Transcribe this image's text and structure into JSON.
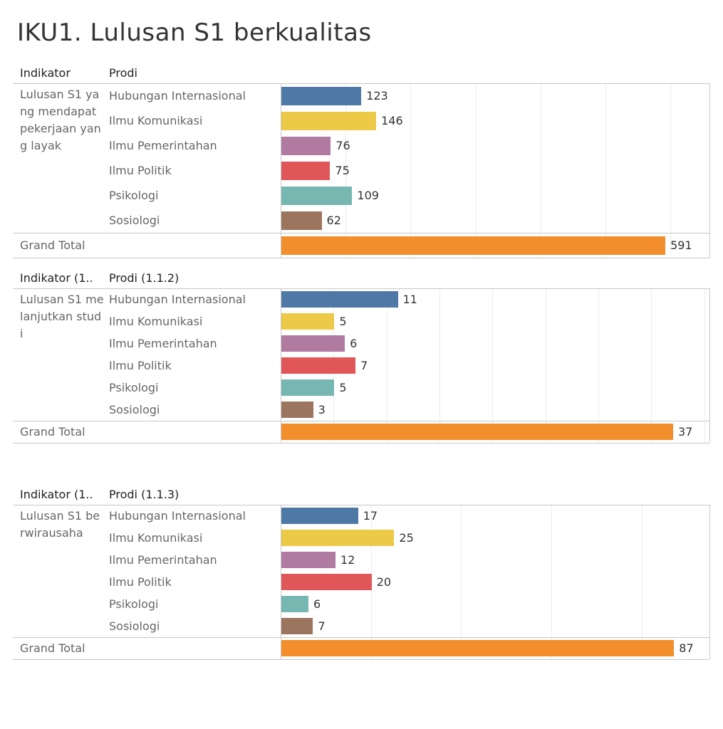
{
  "title": "IKU1. Lulusan S1 berkualitas",
  "grand_total_label": "Grand Total",
  "colors": {
    "Hubungan Internasional": "#4e79a7",
    "Ilmu Komunikasi": "#edc948",
    "Ilmu Pemerintahan": "#b07aa1",
    "Ilmu Politik": "#e15759",
    "Psikologi": "#76b7b2",
    "Sosiologi": "#9c755f",
    "grand_total": "#f28e2b"
  },
  "chart_data": [
    {
      "type": "bar",
      "orientation": "horizontal",
      "header_indikator": "Indikator",
      "header_prodi": "Prodi",
      "indikator": "Lulusan S1 yang mendapat pekerjaan yang layak",
      "categories": [
        "Hubungan Internasional",
        "Ilmu Komunikasi",
        "Ilmu Pemerintahan",
        "Ilmu Politik",
        "Psikologi",
        "Sosiologi"
      ],
      "values": [
        123,
        146,
        76,
        75,
        109,
        62
      ],
      "grand_total": 591,
      "xlim": [
        0,
        660
      ],
      "gridlines": [
        0,
        100,
        200,
        300,
        400,
        500,
        600
      ]
    },
    {
      "type": "bar",
      "orientation": "horizontal",
      "header_indikator": "Indikator (1..",
      "header_prodi": "Prodi (1.1.2)",
      "indikator": "Lulusan S1 melanjutkan studi",
      "categories": [
        "Hubungan Internasional",
        "Ilmu Komunikasi",
        "Ilmu Pemerintahan",
        "Ilmu Politik",
        "Psikologi",
        "Sosiologi"
      ],
      "values": [
        11,
        5,
        6,
        7,
        5,
        3
      ],
      "grand_total": 37,
      "xlim": [
        0,
        40.5
      ],
      "gridlines": [
        0,
        5,
        10,
        15,
        20,
        25,
        30,
        35,
        40
      ]
    },
    {
      "type": "bar",
      "orientation": "horizontal",
      "header_indikator": "Indikator (1..",
      "header_prodi": "Prodi (1.1.3)",
      "indikator": "Lulusan S1 berwirausaha",
      "categories": [
        "Hubungan Internasional",
        "Ilmu Komunikasi",
        "Ilmu Pemerintahan",
        "Ilmu Politik",
        "Psikologi",
        "Sosiologi"
      ],
      "values": [
        17,
        25,
        12,
        20,
        6,
        7
      ],
      "grand_total": 87,
      "xlim": [
        0,
        95
      ],
      "gridlines": [
        0,
        20,
        40,
        60,
        80
      ]
    }
  ]
}
